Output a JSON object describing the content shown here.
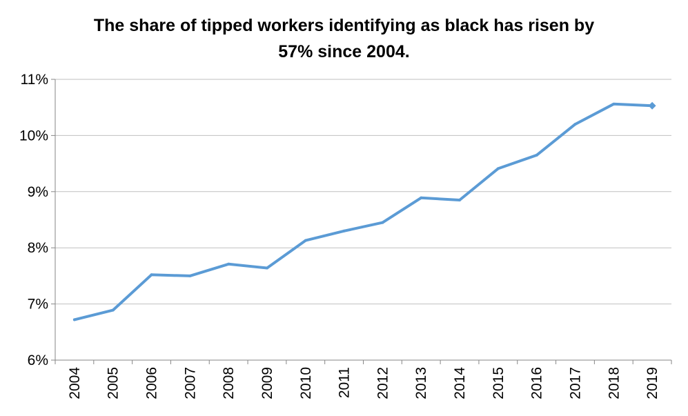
{
  "chart_data": {
    "type": "line",
    "title_lines": [
      "The share of tipped workers identifying as black has risen by",
      "57% since 2004."
    ],
    "xlabel": "",
    "ylabel": "",
    "categories": [
      "2004",
      "2005",
      "2006",
      "2007",
      "2008",
      "2009",
      "2010",
      "2011",
      "2012",
      "2013",
      "2014",
      "2015",
      "2016",
      "2017",
      "2018",
      "2019"
    ],
    "series": [
      {
        "values": [
          6.72,
          6.89,
          7.52,
          7.5,
          7.71,
          7.64,
          8.13,
          8.3,
          8.45,
          8.89,
          8.85,
          9.41,
          9.65,
          10.2,
          10.56,
          10.53
        ],
        "color": "#5b9bd5"
      }
    ],
    "ylim": [
      6,
      11
    ],
    "yticks": [
      6,
      7,
      8,
      9,
      10,
      11
    ],
    "ytick_format": "%",
    "grid": true,
    "legend": "none",
    "last_point_marker": "diamond"
  }
}
